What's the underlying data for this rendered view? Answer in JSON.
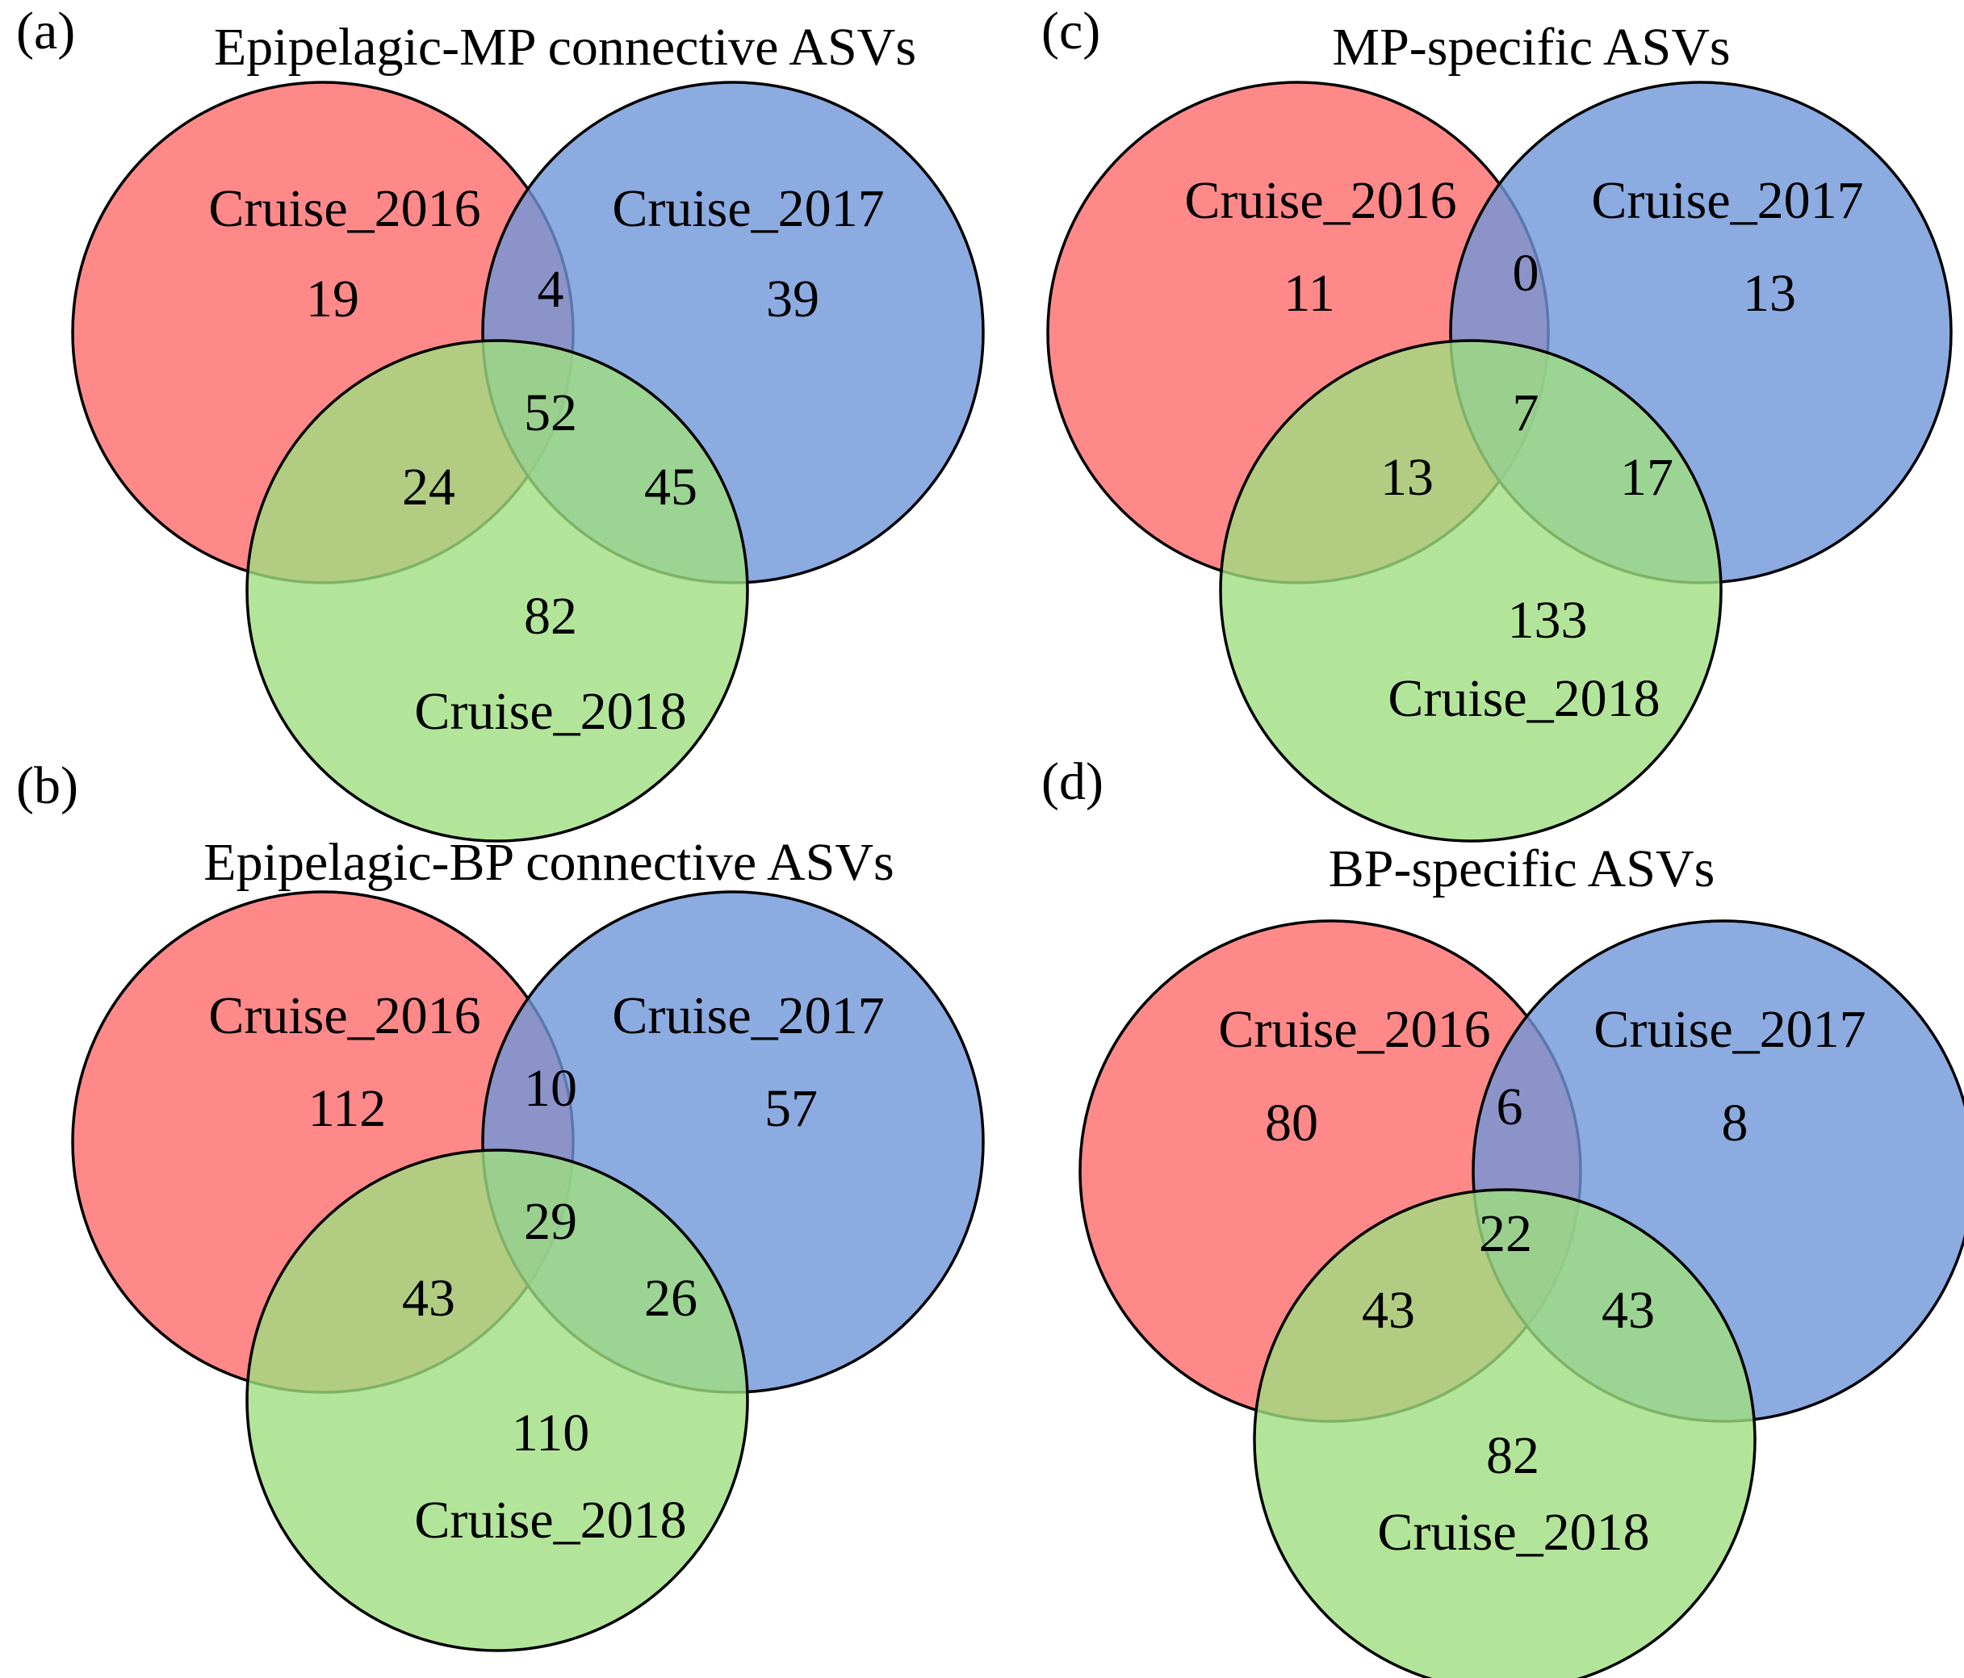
{
  "colors": {
    "set_2016": "#ff6b6b",
    "set_2017": "#6f96d8",
    "set_2018": "#9fdf80",
    "circle_opacity": "0.8"
  },
  "panels": [
    {
      "letter": "(a)",
      "title": "Epipelagic-MP connective ASVs",
      "sets": [
        "Cruise_2016",
        "Cruise_2017",
        "Cruise_2018"
      ],
      "counts": {
        "only_2016": "19",
        "only_2017": "39",
        "only_2018": "82",
        "s2016_2017": "4",
        "s2016_2018": "24",
        "s2017_2018": "45",
        "all": "52"
      }
    },
    {
      "letter": "(b)",
      "title": "Epipelagic-BP connective ASVs",
      "sets": [
        "Cruise_2016",
        "Cruise_2017",
        "Cruise_2018"
      ],
      "counts": {
        "only_2016": "112",
        "only_2017": "57",
        "only_2018": "110",
        "s2016_2017": "10",
        "s2016_2018": "43",
        "s2017_2018": "26",
        "all": "29"
      }
    },
    {
      "letter": "(c)",
      "title": "MP-specific ASVs",
      "sets": [
        "Cruise_2016",
        "Cruise_2017",
        "Cruise_2018"
      ],
      "counts": {
        "only_2016": "11",
        "only_2017": "13",
        "only_2018": "133",
        "s2016_2017": "0",
        "s2016_2018": "13",
        "s2017_2018": "17",
        "all": "7"
      }
    },
    {
      "letter": "(d)",
      "title": "BP-specific ASVs",
      "sets": [
        "Cruise_2016",
        "Cruise_2017",
        "Cruise_2018"
      ],
      "counts": {
        "only_2016": "80",
        "only_2017": "8",
        "only_2018": "82",
        "s2016_2017": "6",
        "s2016_2018": "43",
        "s2017_2018": "43",
        "all": "22"
      }
    }
  ]
}
